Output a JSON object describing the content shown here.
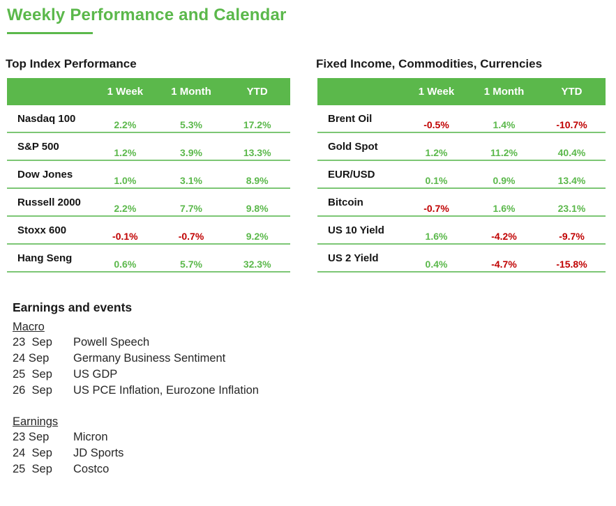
{
  "page_title": "Weekly Performance and Calendar",
  "colors": {
    "accent_green": "#5BB84B",
    "row_line_green": "#7CC674",
    "negative_red": "#C00000",
    "heading_text": "#1A1A1A",
    "header_text": "#FFFFFF"
  },
  "tables": [
    {
      "title": "Top Index Performance",
      "columns": [
        "1 Week",
        "1 Month",
        "YTD"
      ],
      "rows": [
        {
          "name": "Nasdaq 100",
          "values": [
            "2.2%",
            "5.3%",
            "17.2%"
          ]
        },
        {
          "name": "S&P 500",
          "values": [
            "1.2%",
            "3.9%",
            "13.3%"
          ]
        },
        {
          "name": "Dow Jones",
          "values": [
            "1.0%",
            "3.1%",
            "8.9%"
          ]
        },
        {
          "name": "Russell 2000",
          "values": [
            "2.2%",
            "7.7%",
            "9.8%"
          ]
        },
        {
          "name": "Stoxx 600",
          "values": [
            "-0.1%",
            "-0.7%",
            "9.2%"
          ]
        },
        {
          "name": "Hang Seng",
          "values": [
            "0.6%",
            "5.7%",
            "32.3%"
          ]
        }
      ]
    },
    {
      "title": "Fixed Income, Commodities, Currencies",
      "columns": [
        "1 Week",
        "1 Month",
        "YTD"
      ],
      "rows": [
        {
          "name": "Brent Oil",
          "values": [
            "-0.5%",
            "1.4%",
            "-10.7%"
          ]
        },
        {
          "name": "Gold Spot",
          "values": [
            "1.2%",
            "11.2%",
            "40.4%"
          ]
        },
        {
          "name": "EUR/USD",
          "values": [
            "0.1%",
            "0.9%",
            "13.4%"
          ]
        },
        {
          "name": "Bitcoin",
          "values": [
            "-0.7%",
            "1.6%",
            "23.1%"
          ]
        },
        {
          "name": "US 10 Yield",
          "values": [
            "1.6%",
            "-4.2%",
            "-9.7%"
          ]
        },
        {
          "name": "US 2 Yield",
          "values": [
            "0.4%",
            "-4.7%",
            "-15.8%"
          ]
        }
      ]
    }
  ],
  "events": {
    "title": "Earnings and events",
    "sections": [
      {
        "label": "Macro",
        "items": [
          {
            "date": "23  Sep",
            "name": "Powell Speech"
          },
          {
            "date": "24 Sep",
            "name": "Germany Business Sentiment"
          },
          {
            "date": "25  Sep",
            "name": "US GDP"
          },
          {
            "date": "26  Sep",
            "name": "US PCE Inflation, Eurozone Inflation"
          }
        ]
      },
      {
        "label": "Earnings",
        "items": [
          {
            "date": "23 Sep",
            "name": "Micron"
          },
          {
            "date": "24  Sep",
            "name": "JD Sports"
          },
          {
            "date": "25  Sep",
            "name": "Costco"
          }
        ]
      }
    ]
  }
}
